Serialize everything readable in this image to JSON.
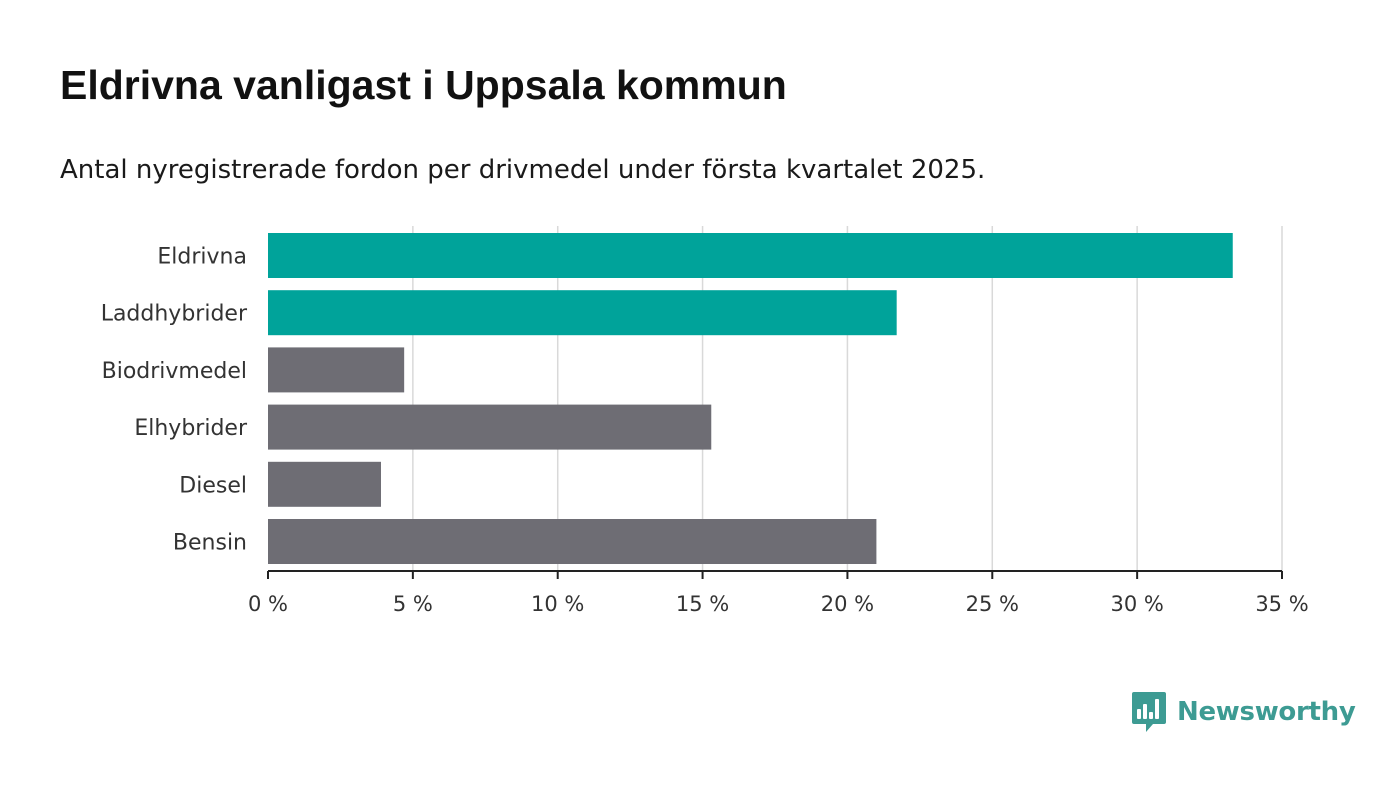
{
  "title": "Eldrivna vanligast i Uppsala kommun",
  "subtitle": "Antal nyregistrerade fordon per drivmedel under första kvartalet 2025.",
  "brand": {
    "name": "Newsworthy",
    "color": "#3d9b93",
    "icon": "newsworthy-logo-icon"
  },
  "chart_data": {
    "type": "bar",
    "orientation": "horizontal",
    "categories": [
      "Eldrivna",
      "Laddhybrider",
      "Biodrivmedel",
      "Elhybrider",
      "Diesel",
      "Bensin"
    ],
    "values": [
      33.3,
      21.7,
      4.7,
      15.3,
      3.9,
      21.0
    ],
    "colors": [
      "#00a39a",
      "#00a39a",
      "#6e6d74",
      "#6e6d74",
      "#6e6d74",
      "#6e6d74"
    ],
    "xlim": [
      0,
      35
    ],
    "xticks": [
      0,
      5,
      10,
      15,
      20,
      25,
      30,
      35
    ],
    "xtick_labels": [
      "0 %",
      "5 %",
      "10 %",
      "15 %",
      "20 %",
      "25 %",
      "30 %",
      "35 %"
    ],
    "grid": "vertical",
    "xlabel": "",
    "ylabel": ""
  }
}
